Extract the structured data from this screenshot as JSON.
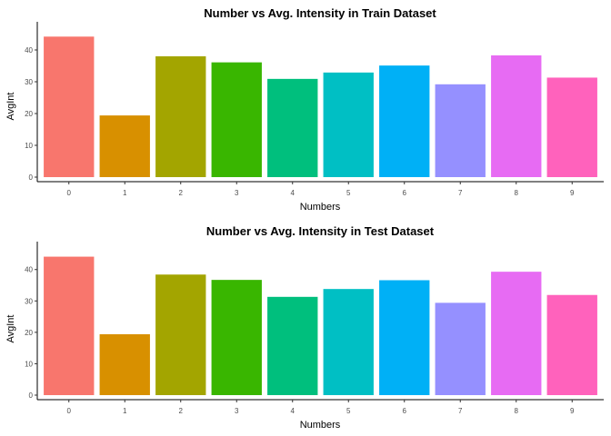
{
  "chart_data": [
    {
      "type": "bar",
      "title": "Number vs Avg. Intensity in Train Dataset",
      "xlabel": "Numbers",
      "ylabel": "AvgInt",
      "categories": [
        "0",
        "1",
        "2",
        "3",
        "4",
        "5",
        "6",
        "7",
        "8",
        "9"
      ],
      "values": [
        44.2,
        19.4,
        38.0,
        36.1,
        30.9,
        32.9,
        35.1,
        29.2,
        38.3,
        31.3
      ],
      "yticks": [
        "0",
        "10",
        "20",
        "30",
        "40"
      ],
      "ylim": [
        0,
        46
      ],
      "grid": false,
      "legend": "none",
      "colors": [
        "#F8766D",
        "#D89000",
        "#A3A500",
        "#39B600",
        "#00BF7D",
        "#00BFC4",
        "#00B0F6",
        "#9590FF",
        "#E76BF3",
        "#FF62BC"
      ]
    },
    {
      "type": "bar",
      "title": "Number vs Avg. Intensity in Test Dataset",
      "xlabel": "Numbers",
      "ylabel": "AvgInt",
      "categories": [
        "0",
        "1",
        "2",
        "3",
        "4",
        "5",
        "6",
        "7",
        "8",
        "9"
      ],
      "values": [
        44.1,
        19.4,
        38.4,
        36.7,
        31.3,
        33.8,
        36.6,
        29.4,
        39.3,
        31.9
      ],
      "yticks": [
        "0",
        "10",
        "20",
        "30",
        "40"
      ],
      "ylim": [
        0,
        46
      ],
      "grid": false,
      "legend": "none",
      "colors": [
        "#F8766D",
        "#D89000",
        "#A3A500",
        "#39B600",
        "#00BF7D",
        "#00BFC4",
        "#00B0F6",
        "#9590FF",
        "#E76BF3",
        "#FF62BC"
      ]
    }
  ]
}
